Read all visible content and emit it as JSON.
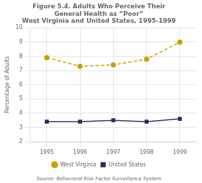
{
  "chart_data": {
    "type": "line",
    "title": [
      "Figure 5.4. Adults Who Perceive Their",
      "General Health as “Poor”",
      "West Virginia and United States, 1995-1999"
    ],
    "ylabel": "Percentage of Adults",
    "x": [
      1995,
      1996,
      1997,
      1998,
      1999
    ],
    "series": [
      {
        "name": "West Virginia",
        "color": "#c8a000",
        "values": [
          7.9,
          7.3,
          7.4,
          7.8,
          9.0
        ],
        "marker": "circle",
        "line_style": "dashed"
      },
      {
        "name": "United States",
        "color": "#2b2b6b",
        "values": [
          3.4,
          3.4,
          3.5,
          3.4,
          3.6
        ],
        "marker": "square",
        "line_style": "solid"
      }
    ],
    "xlim": [
      1994.5,
      1999.5
    ],
    "xticks": [
      1995,
      1996,
      1997,
      1998,
      1999
    ],
    "ylim": [
      2,
      10
    ],
    "yticks": [
      2,
      3,
      4,
      5,
      6,
      7,
      8,
      9,
      10
    ],
    "grid": true,
    "legend": "bottom",
    "annotations": [
      "Source: Behavioral Risk Factor Surveillance System"
    ]
  }
}
